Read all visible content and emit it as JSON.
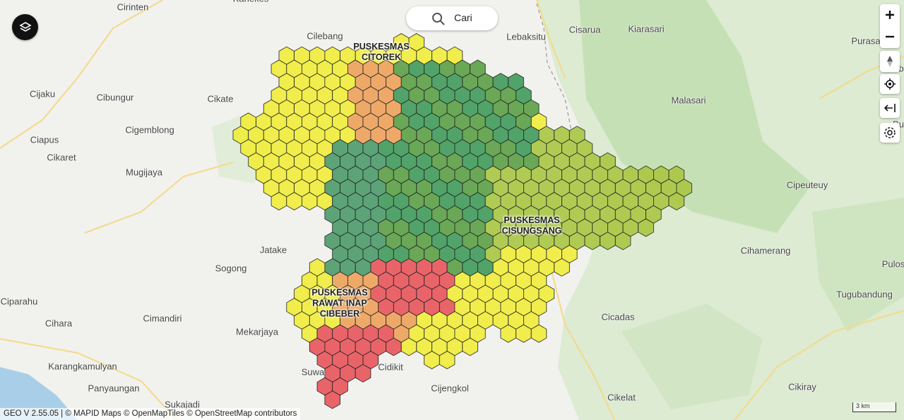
{
  "search": {
    "placeholder": "Cari"
  },
  "places": [
    {
      "name": "Kanekes"
    },
    {
      "name": "Cirinten"
    },
    {
      "name": "Cilebang"
    },
    {
      "name": "Lebaksitu"
    },
    {
      "name": "Cisarua"
    },
    {
      "name": "Kiarasari"
    },
    {
      "name": "Purasa"
    },
    {
      "name": "Cib"
    },
    {
      "name": "Cijaku"
    },
    {
      "name": "Cibungur"
    },
    {
      "name": "Cikate"
    },
    {
      "name": "Malasari"
    },
    {
      "name": "Cigemblong"
    },
    {
      "name": "Pu"
    },
    {
      "name": "Ciapus"
    },
    {
      "name": "Cikaret"
    },
    {
      "name": "Mugijaya"
    },
    {
      "name": "Cipeuteuy"
    },
    {
      "name": "Jatake"
    },
    {
      "name": "Sogong"
    },
    {
      "name": "Cihamerang"
    },
    {
      "name": "Pulos"
    },
    {
      "name": "Tugubandung"
    },
    {
      "name": "Ciparahu"
    },
    {
      "name": "Cihara"
    },
    {
      "name": "Cimandiri"
    },
    {
      "name": "Mekarjaya"
    },
    {
      "name": "Cicadas"
    },
    {
      "name": "Karangkamulyan"
    },
    {
      "name": "Cidikit"
    },
    {
      "name": "Suwa"
    },
    {
      "name": "Panyaungan"
    },
    {
      "name": "Cijengkol"
    },
    {
      "name": "Cikiray"
    },
    {
      "name": "Sukajadi"
    },
    {
      "name": "Cikelat"
    }
  ],
  "markers": [
    {
      "lines": [
        "PUSKESMAS",
        "CITOREK"
      ]
    },
    {
      "lines": [
        "PUSKESMAS",
        "CISUNGSANG"
      ]
    },
    {
      "lines": [
        "PUSKESMAS",
        "RAWAT INAP",
        "CIBEBER"
      ]
    }
  ],
  "attribution": "GEO V 2.55.05 | © MAPID Maps © OpenMapTiles © OpenStreetMap contributors",
  "scale": "3 km"
}
